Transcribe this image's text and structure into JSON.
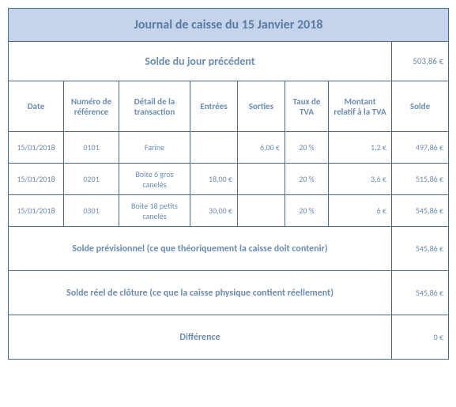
{
  "title": "Journal de caisse du 15 Janvier 2018",
  "prev_balance": {
    "label": "Solde du jour précédent",
    "value": "503,86 €"
  },
  "headers": {
    "date": "Date",
    "ref": "Numéro de référence",
    "detail": "Détail de la transaction",
    "in": "Entrées",
    "out": "Sorties",
    "vat_rate": "Taux de TVA",
    "vat_amount": "Montant relatif à la TVA",
    "balance": "Solde"
  },
  "rows": [
    {
      "date": "15/01/2018",
      "ref": "0101",
      "detail": "Farine",
      "in": "",
      "out": "6,00 €",
      "vat_rate": "20 %",
      "vat_amount": "1,2 €",
      "balance": "497,86 €"
    },
    {
      "date": "15/01/2018",
      "ref": "0201",
      "detail": "Boite 6 gros canelés",
      "in": "18,00 €",
      "out": "",
      "vat_rate": "20 %",
      "vat_amount": "3,6 €",
      "balance": "515,86 €"
    },
    {
      "date": "15/01/2018",
      "ref": "0301",
      "detail": "Boite 18 petits canelés",
      "in": "30,00 €",
      "out": "",
      "vat_rate": "20 %",
      "vat_amount": "6 €",
      "balance": "545,86 €"
    }
  ],
  "summary": {
    "forecast": {
      "label": "Solde prévisionnel (ce que théoriquement la caisse doit contenir)",
      "value": "545,86 €"
    },
    "real": {
      "label": "Solde réel de clôture (ce que la caisse physique contient réellement)",
      "value": "545,86 €"
    },
    "diff": {
      "label": "Différence",
      "value": "0 €"
    }
  },
  "colors": {
    "header_bg": "#c5d4ea",
    "border": "#4a6a8a",
    "text": "#6b8db3"
  }
}
